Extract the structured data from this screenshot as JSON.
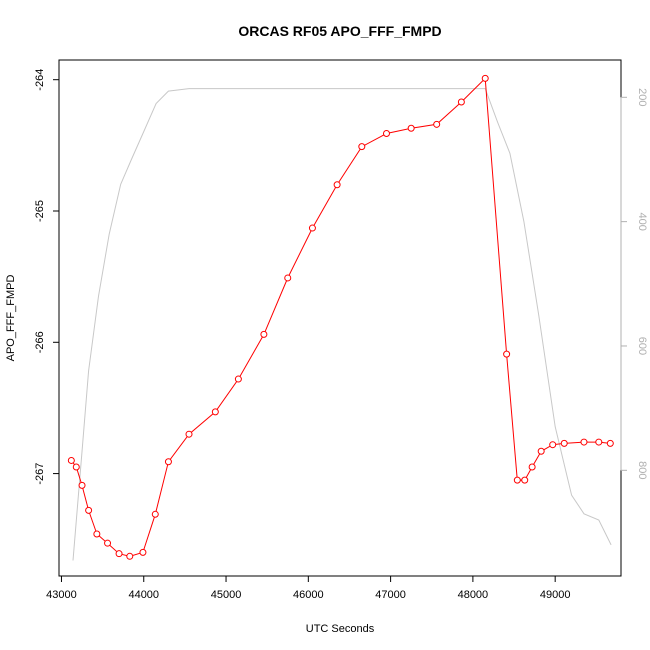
{
  "chart_data": {
    "type": "line",
    "title": "ORCAS RF05 APO_FFF_FMPD",
    "xlabel": "UTC Seconds",
    "ylabel": "APO_FFF_FMPD",
    "xlim": [
      42970,
      49800
    ],
    "ylim": [
      -267.78,
      -263.85
    ],
    "y2lim": [
      970,
      140
    ],
    "x_ticks": [
      43000,
      44000,
      45000,
      46000,
      47000,
      48000,
      49000
    ],
    "y_ticks": [
      -267,
      -266,
      -265,
      -264
    ],
    "y2_ticks": [
      200,
      400,
      600,
      800
    ],
    "grid": false,
    "series": [
      {
        "color": "#ff0000",
        "marker": "open-circle",
        "axis": "left",
        "x": [
          43120,
          43180,
          43250,
          43330,
          43430,
          43560,
          43700,
          43830,
          43990,
          44140,
          44300,
          44550,
          44870,
          45150,
          45460,
          45750,
          46050,
          46350,
          46650,
          46950,
          47250,
          47560,
          47860,
          48150,
          48410,
          48540,
          48630,
          48720,
          48830,
          48970,
          49110,
          49350,
          49530,
          49670
        ],
        "y": [
          -266.9,
          -266.95,
          -267.09,
          -267.28,
          -267.46,
          -267.53,
          -267.61,
          -267.63,
          -267.6,
          -267.31,
          -266.91,
          -266.7,
          -266.53,
          -266.28,
          -265.94,
          -265.51,
          -265.13,
          -264.8,
          -264.51,
          -264.41,
          -264.37,
          -264.34,
          -264.17,
          -263.99,
          -266.09,
          -267.05,
          -267.05,
          -266.95,
          -266.83,
          -266.78,
          -266.77,
          -266.76,
          -266.76,
          -266.77
        ]
      },
      {
        "color": "#c8c8c8",
        "marker": "none",
        "axis": "right",
        "x": [
          43140,
          43250,
          43330,
          43450,
          43580,
          43720,
          43850,
          44000,
          44150,
          44300,
          44550,
          45000,
          46000,
          47000,
          48000,
          48150,
          48300,
          48450,
          48620,
          48800,
          49000,
          49200,
          49350,
          49530,
          49680
        ],
        "y": [
          945,
          770,
          640,
          520,
          420,
          340,
          300,
          255,
          210,
          190,
          186,
          186,
          186,
          186,
          186,
          186,
          240,
          290,
          400,
          550,
          730,
          840,
          870,
          880,
          920
        ]
      }
    ]
  }
}
